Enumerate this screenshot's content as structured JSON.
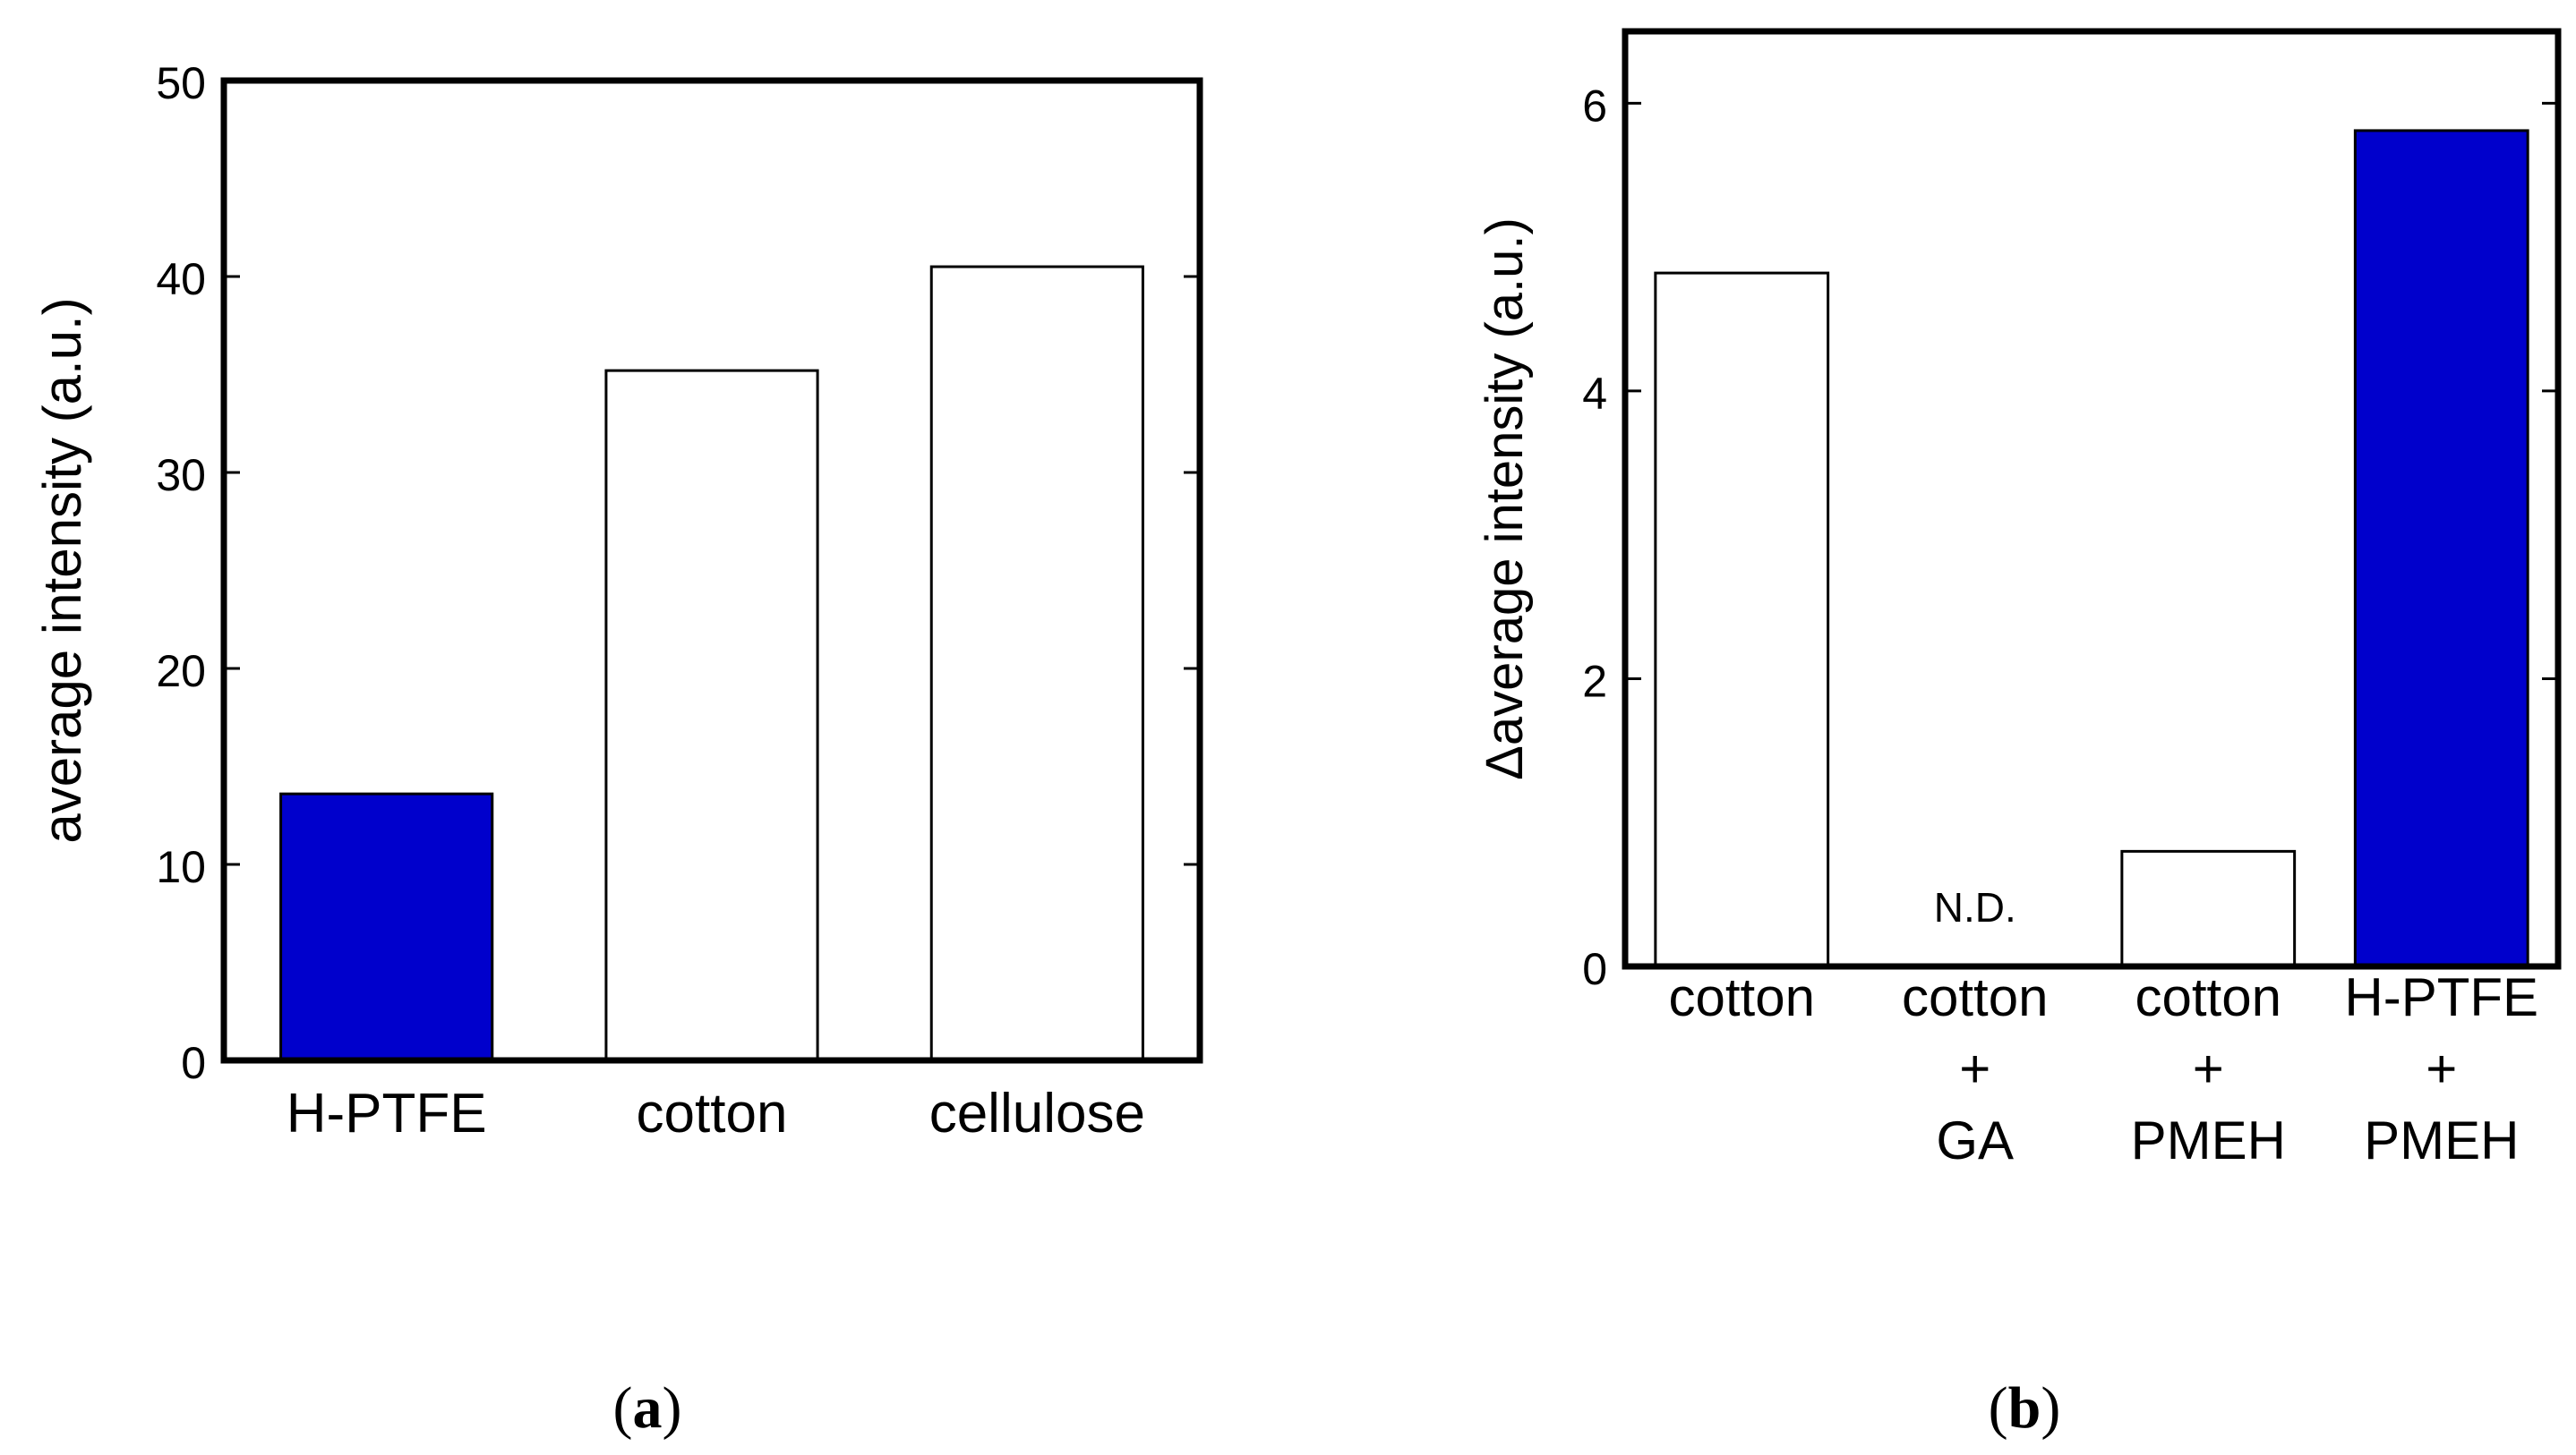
{
  "chart_data": [
    {
      "type": "bar",
      "panel_label": "a",
      "categories": [
        "H-PTFE",
        "cotton",
        "cellulose"
      ],
      "values": [
        13.6,
        35.2,
        40.5
      ],
      "bar_colors": [
        "#0000cc",
        "#ffffff",
        "#ffffff"
      ],
      "title": "",
      "xlabel": "",
      "ylabel": "average intensity (a.u.)",
      "ylim": [
        0,
        50
      ],
      "yticks": [
        0,
        10,
        20,
        30,
        40,
        50
      ],
      "grid": false,
      "legend": "none"
    },
    {
      "type": "bar",
      "panel_label": "b",
      "categories": [
        [
          "cotton"
        ],
        [
          "cotton",
          "+",
          "GA"
        ],
        [
          "cotton",
          "+",
          "PMEH"
        ],
        [
          "H-PTFE",
          "+",
          "PMEH"
        ]
      ],
      "values": [
        4.82,
        null,
        0.8,
        5.81
      ],
      "annotations": [
        null,
        "N.D.",
        null,
        null
      ],
      "bar_colors": [
        "#ffffff",
        "#ffffff",
        "#ffffff",
        "#0000cc"
      ],
      "title": "",
      "xlabel": "",
      "ylabel": "Δaverage intensity (a.u.)",
      "ylim": [
        0,
        6.5
      ],
      "yticks": [
        0,
        2,
        4,
        6
      ],
      "grid": false,
      "legend": "none"
    }
  ],
  "colors": {
    "accent_blue": "#0000cc",
    "frame": "#000000",
    "background": "#ffffff"
  }
}
